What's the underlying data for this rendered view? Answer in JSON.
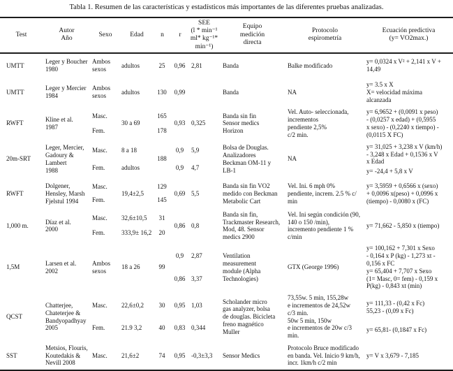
{
  "title": "Tabla 1. Resumen de las características y estadísticos más importantes de las diferentes pruebas analizadas.",
  "header": {
    "test": "Test",
    "autor": "Autor\nAño",
    "sexo": "Sexo",
    "edad": "Edad",
    "n": "n",
    "r": "r",
    "see": "SEE\n(l * min⁻¹\nml* kg⁻¹*\nmin⁻¹)",
    "equipo": "Equipo\nmedición\ndirecta",
    "protocolo": "Protocolo\nespirometría",
    "ecuacion": "Ecuación predictiva\n(y= VO2max.)"
  },
  "rows": [
    {
      "test": "UMTT",
      "autor": "Leger y Boucher\n1980",
      "sexo": "Ambos\nsexos",
      "edad": "adultos",
      "n": "25",
      "r": "0,96",
      "see": "2,81",
      "equipo": "Banda",
      "protocolo": "Balke modificado",
      "ecuacion": "y= 0,0324 x V² + 2,141 x V +\n14,49"
    },
    {
      "test": "UMTT",
      "autor": "Leger y Mercier\n1984",
      "sexo": "Ambos\nsexos",
      "edad": "adultos",
      "n": "130",
      "r": "0,99",
      "see": "",
      "equipo": "Banda",
      "protocolo": "NA",
      "ecuacion": "y= 3.5 x X\nX= velocidad máxima\nalcanzada"
    },
    {
      "test": "RWFT",
      "autor": "Kline et al.\n1987",
      "sexo": [
        "Masc.",
        "Fem."
      ],
      "edad": "30 a 69",
      "n": [
        "165",
        "178"
      ],
      "r": "0,93",
      "see": "0,325",
      "equipo": "Banda sin fin\nSensor medics\nHorizon",
      "protocolo": "Vel. Auto- seleccionada,\nincrementos\npendiente 2,5%\nc/2 min.",
      "ecuacion": "y= 6,9652 + (0,0091 x peso)\n- (0,0257 x edad) + (0,5955\nx sexo) - (0,2240 x tiempo) -\n(0,0115 X FC)"
    },
    {
      "test": "20m-SRT",
      "autor": "Leger, Mercier,\nGadoury &\nLambert\n1988",
      "sexo": [
        "Masc.",
        "Fem."
      ],
      "edad": [
        "8 a 18",
        "adultos"
      ],
      "n": "188",
      "r": [
        "0,9",
        "0,9"
      ],
      "see": [
        "5,9",
        "4,7"
      ],
      "equipo": "Bolsa de Douglas.\nAnalizadores\nBeckman OM-11 y\nLB-1",
      "protocolo": "NA",
      "ecuacion": [
        "y= 31,025 + 3,238 x V (km/h)\n- 3,248 x Edad + 0,1536 x V\nx Edad",
        "y= -24,4 + 5,8 x V"
      ]
    },
    {
      "test": "RWFT",
      "autor": "Dolgener,\nHensley, Marsh\nFjelstul 1994",
      "sexo": [
        "Masc.",
        "Fem."
      ],
      "edad": "19,4±2,5",
      "n": [
        "129",
        "145"
      ],
      "r": "0,69",
      "see": "5,5",
      "equipo": "Banda sin fin VO2\nmedido con Beckman\nMetabolic Cart",
      "protocolo": "Vel. Ini. 6 mph 0%\npendiente, increm. 2.5 % c/\nmin",
      "ecuacion": "y= 3,5959 + 0,6566 x (sexo)\n+ 0,0096 x(peso) + 0,0996 x\n(tiempo) - 0,0080 x (FC)"
    },
    {
      "test": "1,000 m.",
      "autor": "Díaz et al.\n2000",
      "sexo": [
        "Masc.",
        "Fem."
      ],
      "edad": [
        "32,6±10,5",
        "333,9± 16,2"
      ],
      "n": [
        "31",
        "20"
      ],
      "r": "0,86",
      "see": "0,8",
      "equipo": "Banda sin fin,\nTrackmaster Research,\nMod, 48. Sensor\nmedics 2900",
      "protocolo": "Vel. Ini según condición (90,\n140 o 150 /min),\nincremento pendiente 1 %\nc/min",
      "ecuacion": "y= 71,662 - 5,850 x (tiempo)"
    },
    {
      "test": "1,5M",
      "autor": "Larsen et al.\n2002",
      "sexo": "Ambos\nsexos",
      "edad": "18 a 26",
      "n": "99",
      "r": [
        "0,9",
        "0,86"
      ],
      "see": [
        "2,87",
        "3,37"
      ],
      "equipo": "Ventilation\nmeasurement\nmodule (Alpha\nTechnologies)",
      "protocolo": "GTX (George 1996)",
      "ecuacion": [
        "y= 100,162 + 7,301 x Sexo\n- 0,164 x P (kg) - 1,273 xt -\n0,156 x FC",
        "y= 65,404 + 7,707 x Sexo\n(1= Masc, 0= fem) - 0,159 x\nP(kg) - 0,843 xt (min)"
      ]
    },
    {
      "test": "QCST",
      "autor": "Chatterjee,\nChateterjee &\nBandyopadhyay\n2005",
      "sexo": [
        "Masc.",
        "Fem."
      ],
      "edad": [
        "22,6±0,2",
        "21.9 3,2"
      ],
      "n": [
        "30",
        "40"
      ],
      "r": [
        "0,95",
        "0,83"
      ],
      "see": [
        "1,03",
        "0,344"
      ],
      "equipo": "Scholander micro\ngas analyzer, bolsa\nde douglas. Bicicleta\nfreno magnético\nMuller",
      "protocolo": [
        "73,55w. 5 min, 155,28w\ne incrementos de 24,52w\nc/3 min.",
        "50w 5 min, 150w\ne incrementos de 20w c/3 min."
      ],
      "ecuacion": [
        "y= 111,33 - (0,42 x Fc)\n55,23 - (0,09 x Fc)",
        "y= 65,81- (0,1847 x Fc)"
      ]
    },
    {
      "test": "SST",
      "autor": "Metsios, Flouris,\nKoutedakis &\nNevill 2008",
      "sexo": "Masc.",
      "edad": "21,6±2",
      "n": "74",
      "r": "0,95",
      "see": "-0,3±3,3",
      "equipo": "Sensor Medics",
      "protocolo": "Protocolo Bruce modificado\nen banda. Vel. Inicio 9 km/h,\nincr. 1km/h c/2 min",
      "ecuacion": "y= V x 3,679 - 7,185"
    }
  ]
}
